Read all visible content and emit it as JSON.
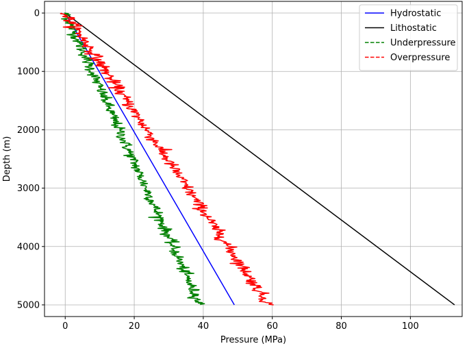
{
  "chart_data": {
    "type": "line",
    "xlabel": "Pressure (MPa)",
    "ylabel": "Depth (m)",
    "xlim": [
      -6,
      115
    ],
    "ylim": [
      5200,
      -200
    ],
    "y_inverted": true,
    "grid": true,
    "legend_position": "top-right",
    "x_ticks": [
      0,
      20,
      40,
      60,
      80,
      100
    ],
    "y_ticks": [
      0,
      1000,
      2000,
      3000,
      4000,
      5000
    ],
    "depth_range": [
      0,
      5000
    ],
    "series": [
      {
        "name": "Hydrostatic",
        "style": "solid",
        "color": "#0000ff",
        "points": [
          [
            0,
            0
          ],
          [
            49,
            5000
          ]
        ]
      },
      {
        "name": "Lithostatic",
        "style": "solid",
        "color": "#000000",
        "points": [
          [
            0,
            0
          ],
          [
            112.8,
            5000
          ]
        ]
      },
      {
        "name": "Underpressure",
        "style": "dashed",
        "color": "#008000",
        "trend": [
          [
            0,
            0
          ],
          [
            39,
            5000
          ]
        ],
        "noise_mpa": 0.9,
        "sample_count": 500
      },
      {
        "name": "Overpressure",
        "style": "dashed",
        "color": "#ff0000",
        "trend": [
          [
            0,
            0
          ],
          [
            59,
            5000
          ]
        ],
        "noise_mpa": 1.0,
        "sample_count": 500
      }
    ]
  }
}
